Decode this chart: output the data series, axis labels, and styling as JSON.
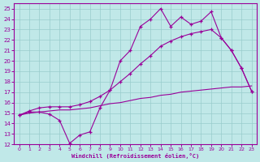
{
  "xlabel": "Windchill (Refroidissement éolien,°C)",
  "bg_color": "#c0e8e8",
  "grid_color": "#98cccc",
  "line_color": "#990099",
  "xlim": [
    -0.5,
    23.5
  ],
  "ylim": [
    12,
    25.5
  ],
  "xticks": [
    0,
    1,
    2,
    3,
    4,
    5,
    6,
    7,
    8,
    9,
    10,
    11,
    12,
    13,
    14,
    15,
    16,
    17,
    18,
    19,
    20,
    21,
    22,
    23
  ],
  "yticks": [
    12,
    13,
    14,
    15,
    16,
    17,
    18,
    19,
    20,
    21,
    22,
    23,
    24,
    25
  ],
  "line1_x": [
    0,
    1,
    2,
    3,
    4,
    5,
    6,
    7,
    8,
    9,
    10,
    11,
    12,
    13,
    14,
    15,
    16,
    17,
    18,
    19,
    20,
    21,
    22,
    23
  ],
  "line1_y": [
    14.8,
    15.1,
    15.1,
    14.9,
    14.3,
    12.1,
    12.9,
    13.2,
    15.5,
    17.2,
    20.0,
    21.0,
    23.3,
    24.0,
    25.0,
    23.3,
    24.2,
    23.5,
    23.8,
    24.7,
    22.2,
    21.0,
    19.3,
    17.1
  ],
  "line2_x": [
    0,
    1,
    2,
    3,
    4,
    5,
    6,
    7,
    8,
    9,
    10,
    11,
    12,
    13,
    14,
    15,
    16,
    17,
    18,
    19,
    20,
    21,
    22,
    23
  ],
  "line2_y": [
    14.8,
    15.2,
    15.5,
    15.6,
    15.6,
    15.6,
    15.8,
    16.1,
    16.6,
    17.2,
    18.0,
    18.8,
    19.7,
    20.5,
    21.4,
    21.9,
    22.3,
    22.6,
    22.8,
    23.0,
    22.2,
    21.0,
    19.3,
    17.1
  ],
  "line3_x": [
    0,
    1,
    2,
    3,
    4,
    5,
    6,
    7,
    8,
    9,
    10,
    11,
    12,
    13,
    14,
    15,
    16,
    17,
    18,
    19,
    20,
    21,
    22,
    23
  ],
  "line3_y": [
    14.8,
    15.0,
    15.1,
    15.2,
    15.3,
    15.3,
    15.4,
    15.5,
    15.7,
    15.9,
    16.0,
    16.2,
    16.4,
    16.5,
    16.7,
    16.8,
    17.0,
    17.1,
    17.2,
    17.3,
    17.4,
    17.5,
    17.5,
    17.6
  ]
}
